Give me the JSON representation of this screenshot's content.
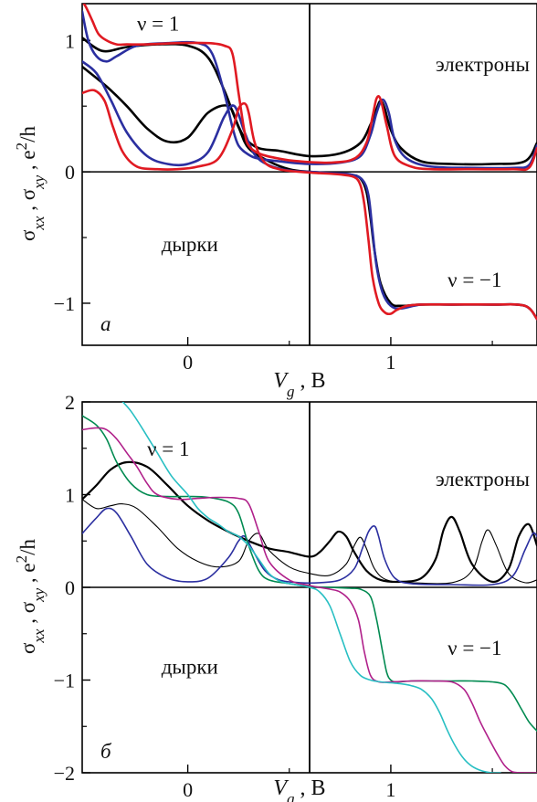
{
  "chart_data": [
    {
      "type": "line",
      "panel_label": "а",
      "xlabel": "V_g , В",
      "ylabel": "σ_xx , σ_xy , e²/h",
      "xlim": [
        -0.52,
        1.72
      ],
      "ylim": [
        -1.32,
        1.28
      ],
      "x_ticks": [
        0,
        1
      ],
      "y_ticks": [
        1,
        0,
        -1
      ],
      "minor_y_ticks": [
        0.5,
        -0.5
      ],
      "grid": false,
      "annotations": [
        {
          "text": "ν = 1",
          "x": -0.25,
          "y": 1.13
        },
        {
          "text": "электроны",
          "x": 1.22,
          "y": 0.82
        },
        {
          "text": "дырки",
          "x": -0.13,
          "y": -0.55
        },
        {
          "text": "ν = −1",
          "x": 1.28,
          "y": -0.82
        }
      ],
      "series": [
        {
          "color": "#000000",
          "width": 2.6,
          "x": [
            -0.52,
            -0.42,
            -0.3,
            -0.15,
            0.0,
            0.1,
            0.18,
            0.23,
            0.28,
            0.35,
            0.45,
            0.6,
            0.75,
            0.85,
            0.9,
            0.93,
            0.95,
            0.97,
            1.0,
            1.05,
            1.15,
            1.3,
            1.5,
            1.66,
            1.72
          ],
          "values": [
            1.02,
            0.92,
            0.95,
            0.97,
            0.96,
            0.87,
            0.62,
            0.42,
            0.26,
            0.18,
            0.16,
            0.12,
            0.14,
            0.22,
            0.36,
            0.48,
            0.54,
            0.48,
            0.32,
            0.18,
            0.08,
            0.06,
            0.06,
            0.08,
            0.22
          ]
        },
        {
          "color": "#000000",
          "width": 2.6,
          "x": [
            -0.52,
            -0.4,
            -0.3,
            -0.2,
            -0.1,
            0.0,
            0.1,
            0.2,
            0.25,
            0.3,
            0.4,
            0.5,
            0.6,
            0.7,
            0.8,
            0.85,
            0.88,
            0.9,
            0.92,
            0.95,
            1.0,
            1.05,
            1.15,
            1.3,
            1.5,
            1.66,
            1.72
          ],
          "values": [
            0.8,
            0.65,
            0.5,
            0.33,
            0.23,
            0.26,
            0.45,
            0.5,
            0.34,
            0.18,
            0.08,
            0.02,
            0.0,
            -0.01,
            -0.02,
            -0.05,
            -0.15,
            -0.35,
            -0.6,
            -0.85,
            -1.0,
            -1.02,
            -1.01,
            -1.01,
            -1.01,
            -1.02,
            -1.12
          ]
        },
        {
          "color": "#2b2fa0",
          "width": 2.6,
          "x": [
            -0.52,
            -0.49,
            -0.45,
            -0.4,
            -0.35,
            -0.25,
            -0.1,
            0.05,
            0.12,
            0.18,
            0.22,
            0.25,
            0.3,
            0.35,
            0.45,
            0.6,
            0.75,
            0.85,
            0.9,
            0.93,
            0.96,
            0.99,
            1.02,
            1.08,
            1.2,
            1.4,
            1.6,
            1.68,
            1.72
          ],
          "values": [
            1.22,
            1.0,
            0.88,
            0.84,
            0.88,
            0.96,
            0.98,
            0.98,
            0.9,
            0.6,
            0.34,
            0.2,
            0.13,
            0.1,
            0.08,
            0.06,
            0.07,
            0.12,
            0.28,
            0.45,
            0.55,
            0.45,
            0.24,
            0.1,
            0.04,
            0.03,
            0.03,
            0.05,
            0.2
          ]
        },
        {
          "color": "#2b2fa0",
          "width": 2.6,
          "x": [
            -0.52,
            -0.45,
            -0.38,
            -0.3,
            -0.2,
            -0.1,
            0.0,
            0.1,
            0.18,
            0.23,
            0.28,
            0.33,
            0.4,
            0.5,
            0.6,
            0.7,
            0.8,
            0.86,
            0.89,
            0.91,
            0.93,
            0.96,
            1.0,
            1.05,
            1.15,
            1.3,
            1.5,
            1.66,
            1.72
          ],
          "values": [
            0.84,
            0.75,
            0.55,
            0.3,
            0.12,
            0.06,
            0.06,
            0.15,
            0.42,
            0.5,
            0.3,
            0.13,
            0.05,
            0.01,
            0.0,
            -0.01,
            -0.02,
            -0.06,
            -0.18,
            -0.45,
            -0.72,
            -0.92,
            -1.02,
            -1.04,
            -1.01,
            -1.01,
            -1.01,
            -1.02,
            -1.12
          ]
        },
        {
          "color": "#e01a22",
          "width": 2.6,
          "x": [
            -0.52,
            -0.5,
            -0.47,
            -0.44,
            -0.4,
            -0.35,
            -0.3,
            -0.2,
            -0.05,
            0.1,
            0.18,
            0.22,
            0.25,
            0.28,
            0.3,
            0.35,
            0.45,
            0.55,
            0.7,
            0.82,
            0.88,
            0.91,
            0.93,
            0.95,
            0.98,
            1.02,
            1.1,
            1.2,
            1.4,
            1.6,
            1.68,
            1.72
          ],
          "values": [
            1.3,
            1.25,
            1.15,
            1.05,
            1.0,
            0.97,
            0.97,
            0.97,
            0.98,
            0.98,
            0.96,
            0.9,
            0.6,
            0.3,
            0.2,
            0.14,
            0.1,
            0.08,
            0.07,
            0.1,
            0.22,
            0.42,
            0.56,
            0.55,
            0.35,
            0.12,
            0.04,
            0.02,
            0.02,
            0.02,
            0.03,
            0.18
          ]
        },
        {
          "color": "#e01a22",
          "width": 2.6,
          "x": [
            -0.52,
            -0.46,
            -0.41,
            -0.37,
            -0.32,
            -0.25,
            -0.15,
            -0.05,
            0.05,
            0.15,
            0.22,
            0.25,
            0.28,
            0.3,
            0.33,
            0.38,
            0.45,
            0.55,
            0.65,
            0.75,
            0.82,
            0.85,
            0.87,
            0.89,
            0.91,
            0.94,
            0.97,
            1.0,
            1.03,
            1.08,
            1.15,
            1.3,
            1.5,
            1.66,
            1.72
          ],
          "values": [
            0.6,
            0.62,
            0.54,
            0.35,
            0.15,
            0.04,
            0.02,
            0.02,
            0.04,
            0.1,
            0.32,
            0.48,
            0.52,
            0.45,
            0.22,
            0.07,
            0.02,
            0.0,
            -0.01,
            -0.02,
            -0.04,
            -0.1,
            -0.25,
            -0.52,
            -0.8,
            -1.0,
            -1.07,
            -1.08,
            -1.05,
            -1.02,
            -1.01,
            -1.01,
            -1.01,
            -1.02,
            -1.12
          ]
        }
      ]
    },
    {
      "type": "line",
      "panel_label": "б",
      "xlabel": "V_g , В",
      "ylabel": "σ_xx , σ_xy , e²/h",
      "xlim": [
        -0.52,
        1.72
      ],
      "ylim": [
        -2.0,
        2.0
      ],
      "x_ticks": [
        0,
        1
      ],
      "y_ticks": [
        2,
        1,
        0,
        -1,
        -2
      ],
      "minor_y_ticks": [
        1.5,
        0.5,
        -0.5,
        -1.5
      ],
      "grid": false,
      "annotations": [
        {
          "text": "ν = 1",
          "x": -0.2,
          "y": 1.5
        },
        {
          "text": "электроны",
          "x": 1.22,
          "y": 1.17
        },
        {
          "text": "дырки",
          "x": -0.13,
          "y": -0.85
        },
        {
          "text": "ν = −1",
          "x": 1.28,
          "y": -0.65
        }
      ],
      "series": [
        {
          "color": "#000000",
          "width": 2.2,
          "x": [
            -0.52,
            -0.45,
            -0.38,
            -0.3,
            -0.2,
            -0.1,
            0.0,
            0.1,
            0.2,
            0.3,
            0.4,
            0.5,
            0.6,
            0.65,
            0.7,
            0.74,
            0.78,
            0.82,
            0.88,
            0.95,
            1.05,
            1.15,
            1.22,
            1.26,
            1.3,
            1.34,
            1.4,
            1.5,
            1.58,
            1.63,
            1.68,
            1.72
          ],
          "values": [
            0.95,
            1.1,
            1.27,
            1.35,
            1.3,
            1.1,
            0.88,
            0.72,
            0.6,
            0.5,
            0.42,
            0.38,
            0.33,
            0.38,
            0.5,
            0.6,
            0.55,
            0.38,
            0.18,
            0.08,
            0.06,
            0.1,
            0.3,
            0.62,
            0.76,
            0.6,
            0.25,
            0.06,
            0.2,
            0.55,
            0.68,
            0.45
          ]
        },
        {
          "color": "#000000",
          "width": 1.1,
          "x": [
            -0.52,
            -0.45,
            -0.38,
            -0.32,
            -0.25,
            -0.15,
            -0.05,
            0.05,
            0.15,
            0.25,
            0.3,
            0.35,
            0.4,
            0.5,
            0.6,
            0.7,
            0.78,
            0.82,
            0.85,
            0.88,
            0.92,
            0.98,
            1.1,
            1.3,
            1.4,
            1.45,
            1.48,
            1.52,
            1.58,
            1.66,
            1.72
          ],
          "values": [
            0.95,
            0.85,
            0.88,
            0.9,
            0.85,
            0.65,
            0.42,
            0.28,
            0.22,
            0.28,
            0.5,
            0.58,
            0.4,
            0.22,
            0.15,
            0.13,
            0.25,
            0.45,
            0.54,
            0.42,
            0.2,
            0.08,
            0.05,
            0.05,
            0.18,
            0.5,
            0.62,
            0.45,
            0.15,
            0.05,
            0.08
          ]
        },
        {
          "color": "#2b2fa0",
          "width": 1.6,
          "x": [
            -0.52,
            -0.45,
            -0.4,
            -0.35,
            -0.28,
            -0.2,
            -0.1,
            0.0,
            0.1,
            0.2,
            0.25,
            0.28,
            0.32,
            0.38,
            0.45,
            0.55,
            0.65,
            0.75,
            0.82,
            0.86,
            0.89,
            0.92,
            0.94,
            0.97,
            1.02,
            1.1,
            1.3,
            1.5,
            1.6,
            1.66,
            1.7,
            1.72
          ],
          "values": [
            0.58,
            0.75,
            0.85,
            0.8,
            0.55,
            0.25,
            0.1,
            0.06,
            0.1,
            0.32,
            0.5,
            0.55,
            0.4,
            0.18,
            0.08,
            0.05,
            0.05,
            0.08,
            0.2,
            0.42,
            0.6,
            0.66,
            0.55,
            0.3,
            0.1,
            0.04,
            0.03,
            0.03,
            0.12,
            0.4,
            0.58,
            0.55
          ]
        },
        {
          "color": "#008a50",
          "width": 1.6,
          "x": [
            -0.52,
            -0.45,
            -0.4,
            -0.35,
            -0.28,
            -0.2,
            -0.1,
            0.0,
            0.1,
            0.2,
            0.25,
            0.3,
            0.35,
            0.4,
            0.5,
            0.6,
            0.7,
            0.8,
            0.85,
            0.9,
            0.93,
            0.96,
            0.98,
            1.0,
            1.03,
            1.1,
            1.2,
            1.3,
            1.4,
            1.5,
            1.56,
            1.6,
            1.64,
            1.68,
            1.72
          ],
          "values": [
            1.85,
            1.75,
            1.6,
            1.35,
            1.12,
            1.0,
            0.98,
            0.98,
            0.97,
            0.92,
            0.8,
            0.45,
            0.18,
            0.08,
            0.04,
            0.01,
            0.0,
            -0.01,
            -0.02,
            -0.1,
            -0.35,
            -0.7,
            -0.92,
            -1.0,
            -1.02,
            -1.01,
            -1.01,
            -1.01,
            -1.01,
            -1.02,
            -1.05,
            -1.15,
            -1.3,
            -1.45,
            -1.55
          ]
        },
        {
          "color": "#b0208a",
          "width": 1.6,
          "x": [
            -0.52,
            -0.45,
            -0.4,
            -0.35,
            -0.3,
            -0.25,
            -0.2,
            -0.15,
            -0.05,
            0.05,
            0.15,
            0.25,
            0.3,
            0.35,
            0.4,
            0.5,
            0.6,
            0.7,
            0.75,
            0.8,
            0.84,
            0.87,
            0.9,
            0.94,
            1.0,
            1.1,
            1.2,
            1.3,
            1.36,
            1.4,
            1.44,
            1.48,
            1.52,
            1.56,
            1.6,
            1.66,
            1.72
          ],
          "values": [
            1.7,
            1.72,
            1.7,
            1.6,
            1.45,
            1.3,
            1.12,
            1.0,
            0.95,
            0.96,
            0.97,
            0.96,
            0.9,
            0.6,
            0.28,
            0.08,
            0.02,
            -0.02,
            -0.05,
            -0.15,
            -0.35,
            -0.7,
            -0.95,
            -1.02,
            -1.02,
            -1.01,
            -1.01,
            -1.02,
            -1.1,
            -1.25,
            -1.45,
            -1.62,
            -1.78,
            -1.92,
            -1.99,
            -2.0,
            -2.0
          ]
        },
        {
          "color": "#28bfc3",
          "width": 1.6,
          "x": [
            -0.32,
            -0.28,
            -0.22,
            -0.15,
            -0.08,
            0.0,
            0.05,
            0.1,
            0.15,
            0.2,
            0.25,
            0.3,
            0.35,
            0.4,
            0.45,
            0.5,
            0.6,
            0.65,
            0.7,
            0.75,
            0.8,
            0.85,
            0.9,
            0.95,
            1.0,
            1.05,
            1.1,
            1.15,
            1.2,
            1.24,
            1.28,
            1.32,
            1.36,
            1.4,
            1.45,
            1.5,
            1.54
          ],
          "values": [
            2.0,
            1.9,
            1.7,
            1.45,
            1.2,
            1.0,
            0.85,
            0.75,
            0.68,
            0.6,
            0.55,
            0.45,
            0.3,
            0.15,
            0.07,
            0.04,
            0.0,
            -0.05,
            -0.2,
            -0.5,
            -0.8,
            -0.95,
            -1.0,
            -1.02,
            -1.03,
            -1.04,
            -1.06,
            -1.1,
            -1.2,
            -1.35,
            -1.55,
            -1.72,
            -1.85,
            -1.93,
            -1.98,
            -2.0,
            -2.0
          ]
        }
      ]
    }
  ]
}
